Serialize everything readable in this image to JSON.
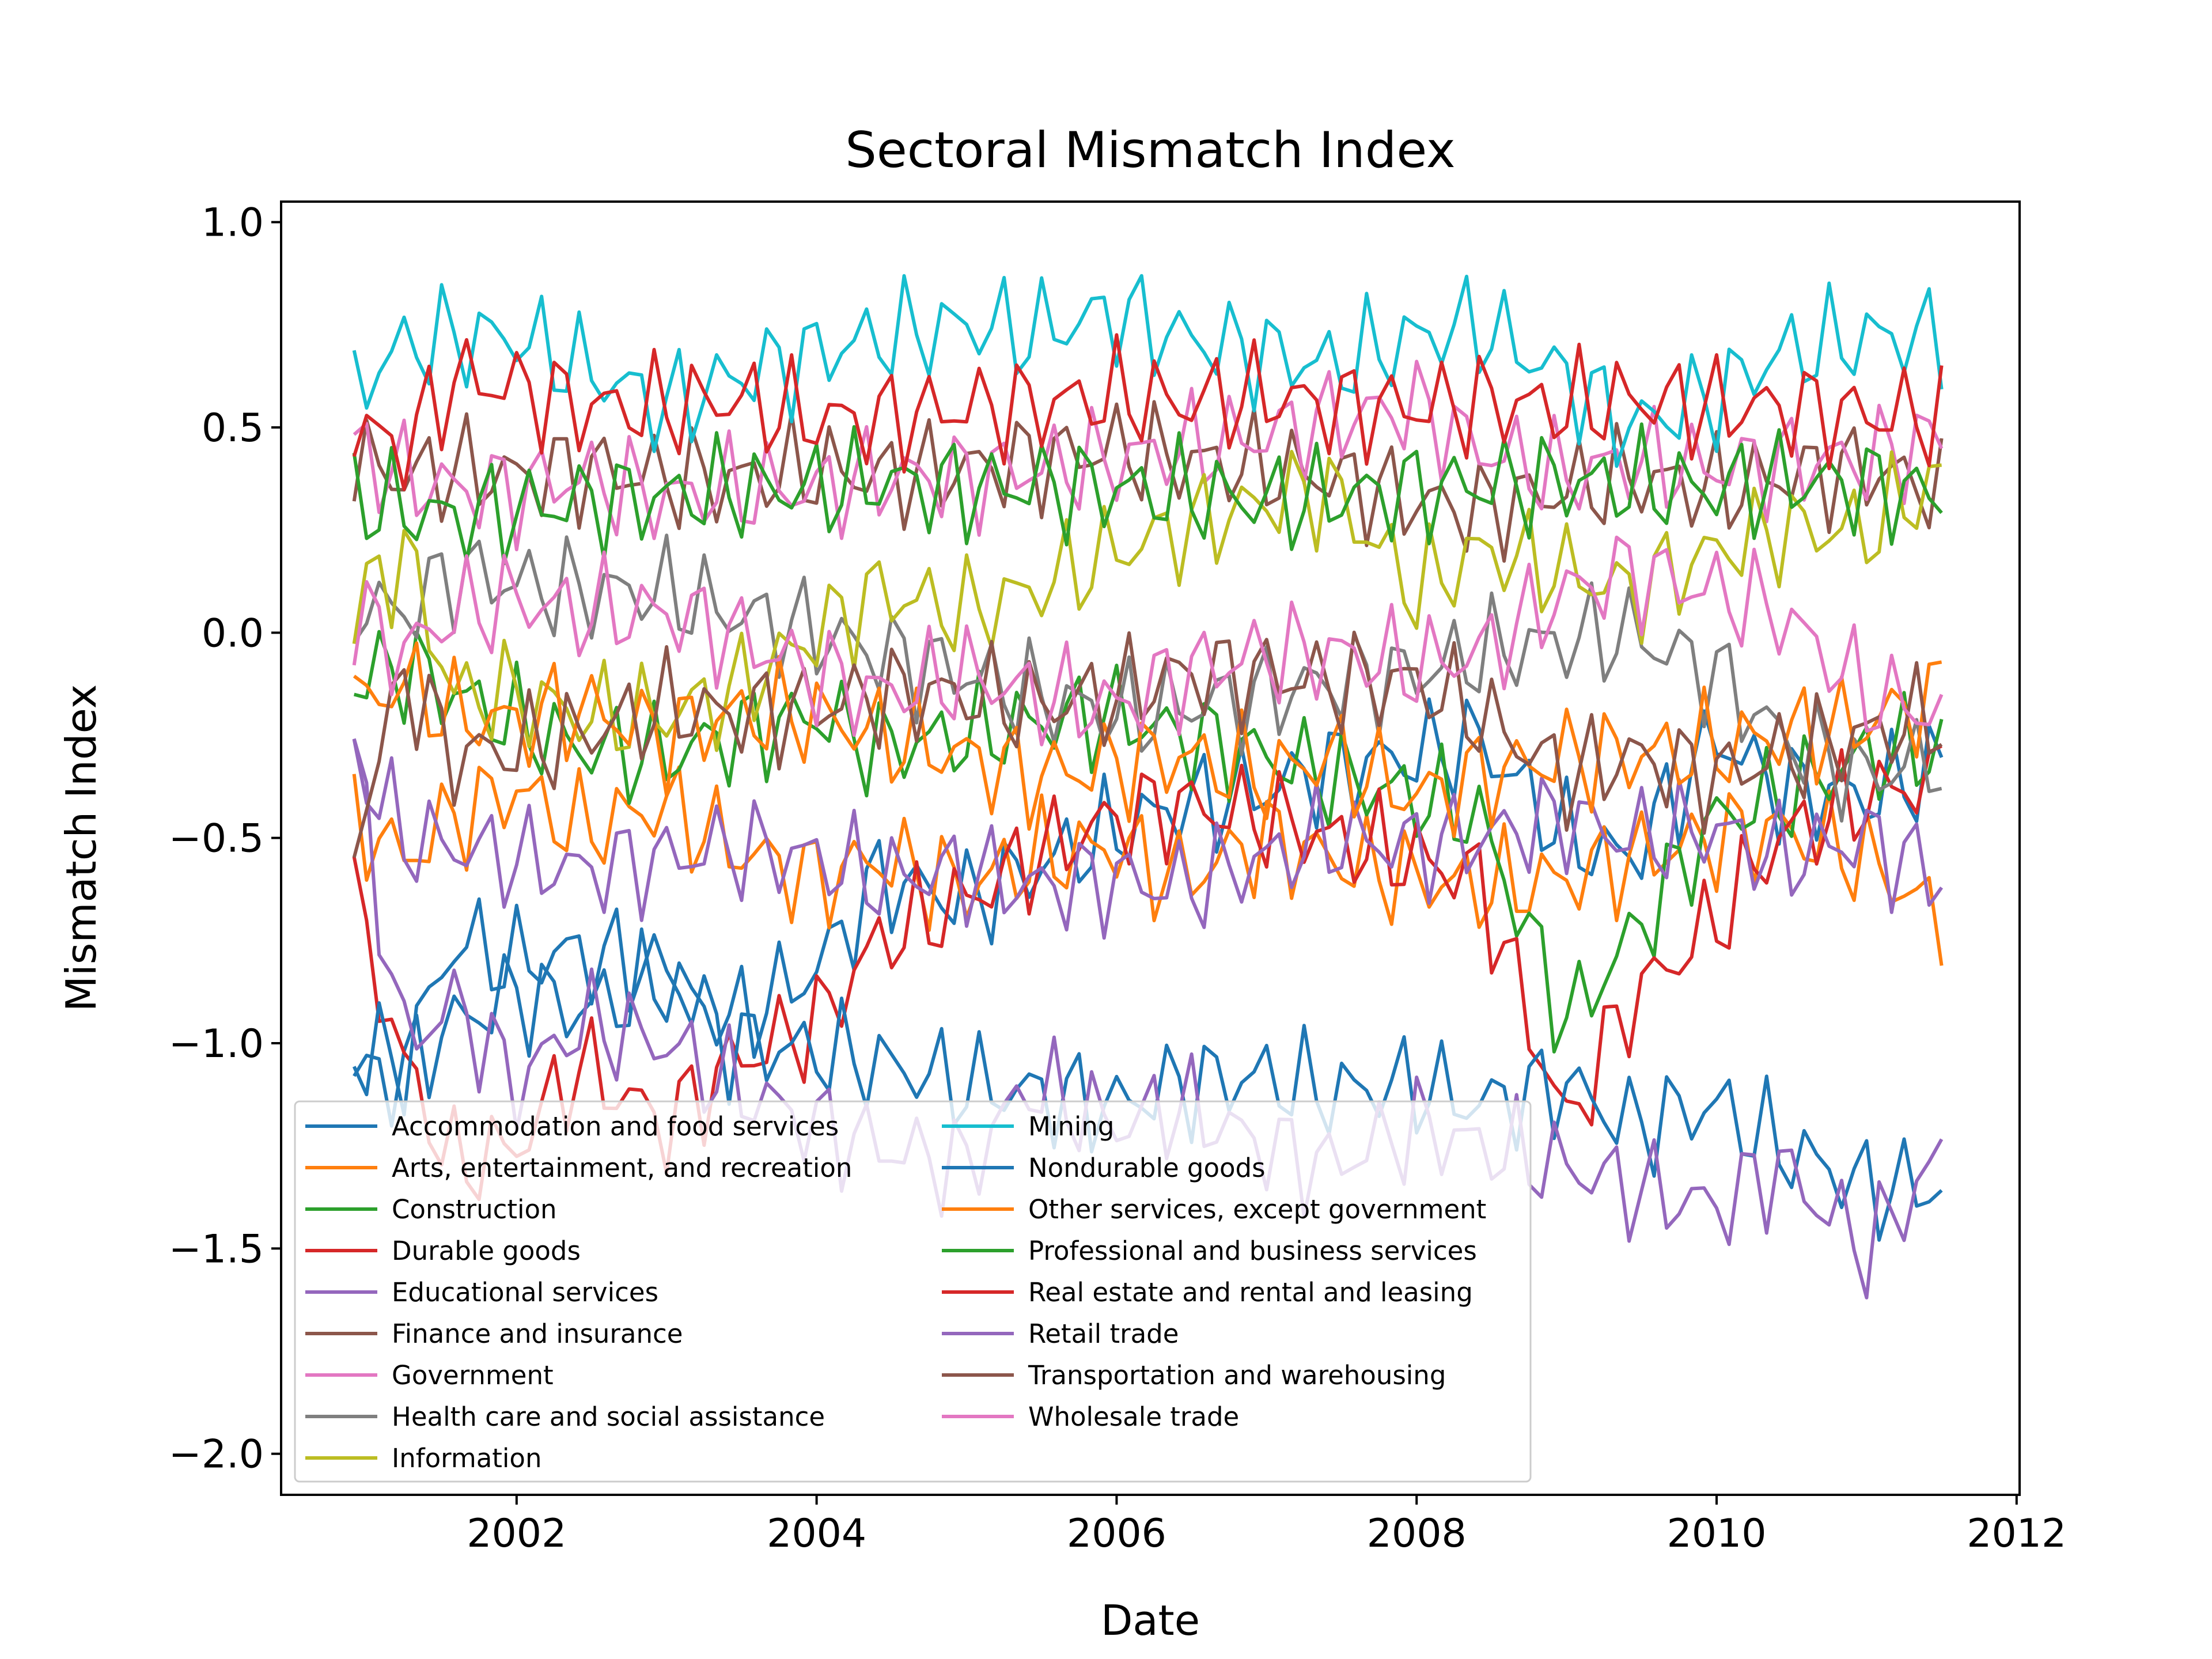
{
  "chart_data": {
    "type": "line",
    "title": "Sectoral Mismatch Index",
    "xlabel": "Date",
    "ylabel": "Mismatch Index",
    "x_start": "2000-12",
    "x_end": "2011-07",
    "xlim": [
      2000.43,
      2012.02
    ],
    "ylim": [
      -2.1,
      1.05
    ],
    "xticks": [
      2002,
      2004,
      2006,
      2008,
      2010,
      2012
    ],
    "xtick_labels": [
      "2002",
      "2004",
      "2006",
      "2008",
      "2010",
      "2012"
    ],
    "yticks": [
      1.0,
      0.5,
      0.0,
      -0.5,
      -1.0,
      -1.5,
      -2.0
    ],
    "ytick_labels": [
      "1.0",
      "0.5",
      "0.0",
      "−0.5",
      "−1.0",
      "−1.5",
      "−2.0"
    ],
    "grid": false,
    "legend_position": "lower-left",
    "series": [
      {
        "name": "Accommodation and food services",
        "color": "#1f77b4",
        "x": [
          "2000-12",
          "2001-04",
          "2001-08",
          "2002-01",
          "2002-06",
          "2003-01",
          "2003-06",
          "2004-01",
          "2004-06",
          "2005-01",
          "2005-06",
          "2006-01",
          "2006-06",
          "2007-01",
          "2007-06",
          "2008-01",
          "2008-06",
          "2009-01",
          "2009-06",
          "2010-01",
          "2010-06",
          "2011-01",
          "2011-07"
        ],
        "values": [
          -1.08,
          -1.07,
          -0.95,
          -0.88,
          -0.92,
          -0.85,
          -0.95,
          -0.82,
          -0.6,
          -0.65,
          -0.58,
          -0.48,
          -0.42,
          -0.38,
          -0.33,
          -0.3,
          -0.26,
          -0.5,
          -0.55,
          -0.25,
          -0.38,
          -0.4,
          -0.32
        ]
      },
      {
        "name": "Arts, entertainment, and recreation",
        "color": "#ff7f0e",
        "x": [
          "2000-12",
          "2001-04",
          "2001-08",
          "2002-01",
          "2002-06",
          "2003-01",
          "2003-06",
          "2004-01",
          "2004-06",
          "2005-01",
          "2005-06",
          "2006-01",
          "2006-06",
          "2007-01",
          "2007-06",
          "2008-01",
          "2008-06",
          "2009-01",
          "2009-06",
          "2010-01",
          "2010-06",
          "2011-01",
          "2011-07"
        ],
        "values": [
          -0.45,
          -0.55,
          -0.45,
          -0.38,
          -0.48,
          -0.42,
          -0.52,
          -0.6,
          -0.55,
          -0.62,
          -0.55,
          -0.52,
          -0.6,
          -0.5,
          -0.55,
          -0.6,
          -0.62,
          -0.6,
          -0.55,
          -0.5,
          -0.48,
          -0.55,
          -0.7
        ]
      },
      {
        "name": "Construction",
        "color": "#2ca02c",
        "x": [
          "2000-12",
          "2001-04",
          "2001-08",
          "2002-01",
          "2002-06",
          "2003-01",
          "2003-06",
          "2004-01",
          "2004-06",
          "2005-01",
          "2005-06",
          "2006-01",
          "2006-06",
          "2007-01",
          "2007-06",
          "2008-01",
          "2008-06",
          "2009-01",
          "2009-06",
          "2010-01",
          "2010-06",
          "2011-01",
          "2011-07"
        ],
        "values": [
          -0.12,
          -0.08,
          -0.15,
          -0.22,
          -0.28,
          -0.3,
          -0.25,
          -0.2,
          -0.28,
          -0.25,
          -0.22,
          -0.2,
          -0.25,
          -0.3,
          -0.35,
          -0.4,
          -0.45,
          -0.95,
          -0.75,
          -0.45,
          -0.4,
          -0.3,
          -0.28
        ]
      },
      {
        "name": "Durable goods",
        "color": "#d62728",
        "x": [
          "2000-12",
          "2001-04",
          "2001-08",
          "2002-01",
          "2002-06",
          "2003-01",
          "2003-06",
          "2004-01",
          "2004-06",
          "2005-01",
          "2005-06",
          "2006-01",
          "2006-06",
          "2007-01",
          "2007-06",
          "2008-01",
          "2008-06",
          "2009-01",
          "2009-06",
          "2010-01",
          "2010-06",
          "2011-01",
          "2011-07"
        ],
        "values": [
          -0.65,
          -1.05,
          -1.3,
          -1.25,
          -1.05,
          -1.2,
          -1.05,
          -0.95,
          -0.75,
          -0.65,
          -0.55,
          -0.45,
          -0.42,
          -0.45,
          -0.5,
          -0.55,
          -0.6,
          -1.2,
          -0.9,
          -0.7,
          -0.5,
          -0.4,
          -0.35
        ]
      },
      {
        "name": "Educational services",
        "color": "#9467bd",
        "x": [
          "2000-12",
          "2001-04",
          "2001-08",
          "2002-01",
          "2002-06",
          "2003-01",
          "2003-06",
          "2004-01",
          "2004-06",
          "2005-01",
          "2005-06",
          "2006-01",
          "2006-06",
          "2007-01",
          "2007-06",
          "2008-01",
          "2008-06",
          "2009-01",
          "2009-06",
          "2010-01",
          "2010-06",
          "2011-01",
          "2011-07"
        ],
        "values": [
          -0.3,
          -0.5,
          -0.52,
          -0.55,
          -0.58,
          -0.55,
          -0.52,
          -0.55,
          -0.6,
          -0.58,
          -0.62,
          -0.6,
          -0.62,
          -0.55,
          -0.5,
          -0.52,
          -0.5,
          -0.45,
          -0.5,
          -0.48,
          -0.55,
          -0.5,
          -0.6
        ]
      },
      {
        "name": "Finance and insurance",
        "color": "#8c564b",
        "x": [
          "2000-12",
          "2001-04",
          "2001-08",
          "2002-01",
          "2002-06",
          "2003-01",
          "2003-06",
          "2004-01",
          "2004-06",
          "2005-01",
          "2005-06",
          "2006-01",
          "2006-06",
          "2007-01",
          "2007-06",
          "2008-01",
          "2008-06",
          "2009-01",
          "2009-06",
          "2010-01",
          "2010-06",
          "2011-01",
          "2011-07"
        ],
        "values": [
          0.42,
          0.38,
          0.4,
          0.38,
          0.4,
          0.38,
          0.37,
          0.4,
          0.38,
          0.4,
          0.42,
          0.45,
          0.42,
          0.4,
          0.38,
          0.32,
          0.3,
          0.35,
          0.38,
          0.35,
          0.38,
          0.4,
          0.35
        ]
      },
      {
        "name": "Government",
        "color": "#e377c2",
        "x": [
          "2000-12",
          "2001-04",
          "2001-08",
          "2002-01",
          "2002-06",
          "2003-01",
          "2003-06",
          "2004-01",
          "2004-06",
          "2005-01",
          "2005-06",
          "2006-01",
          "2006-06",
          "2007-01",
          "2007-06",
          "2008-01",
          "2008-06",
          "2009-01",
          "2009-06",
          "2010-01",
          "2010-06",
          "2011-01",
          "2011-07"
        ],
        "values": [
          0.45,
          0.38,
          0.35,
          0.35,
          0.38,
          0.33,
          0.35,
          0.35,
          0.38,
          0.38,
          0.4,
          0.42,
          0.45,
          0.48,
          0.52,
          0.55,
          0.45,
          0.38,
          0.42,
          0.4,
          0.42,
          0.42,
          0.48
        ]
      },
      {
        "name": "Health care and social assistance",
        "color": "#7f7f7f",
        "x": [
          "2000-12",
          "2001-04",
          "2001-08",
          "2002-01",
          "2002-06",
          "2003-01",
          "2003-06",
          "2004-01",
          "2004-06",
          "2005-01",
          "2005-06",
          "2006-01",
          "2006-06",
          "2007-01",
          "2007-06",
          "2008-01",
          "2008-06",
          "2009-01",
          "2009-06",
          "2010-01",
          "2010-06",
          "2011-01",
          "2011-07"
        ],
        "values": [
          0.07,
          0.05,
          0.15,
          0.12,
          0.1,
          0.1,
          0.05,
          0.0,
          -0.05,
          -0.1,
          -0.15,
          -0.2,
          -0.18,
          -0.15,
          -0.12,
          -0.1,
          -0.05,
          -0.02,
          0.0,
          -0.1,
          -0.25,
          -0.35,
          -0.3
        ]
      },
      {
        "name": "Information",
        "color": "#bcbd22",
        "x": [
          "2000-12",
          "2001-04",
          "2001-08",
          "2002-01",
          "2002-06",
          "2003-01",
          "2003-06",
          "2004-01",
          "2004-06",
          "2005-01",
          "2005-06",
          "2006-01",
          "2006-06",
          "2007-01",
          "2007-06",
          "2008-01",
          "2008-06",
          "2009-01",
          "2009-06",
          "2010-01",
          "2010-06",
          "2011-01",
          "2011-07"
        ],
        "values": [
          0.05,
          0.2,
          -0.15,
          -0.15,
          -0.2,
          -0.2,
          -0.15,
          0.0,
          0.1,
          0.05,
          0.1,
          0.2,
          0.25,
          0.32,
          0.35,
          0.1,
          0.2,
          0.15,
          0.1,
          0.2,
          0.25,
          0.25,
          0.38
        ]
      },
      {
        "name": "Mining",
        "color": "#17becf",
        "x": [
          "2000-12",
          "2001-04",
          "2001-08",
          "2002-01",
          "2002-06",
          "2003-01",
          "2003-06",
          "2004-01",
          "2004-06",
          "2005-01",
          "2005-06",
          "2006-01",
          "2006-06",
          "2007-01",
          "2007-06",
          "2008-01",
          "2008-06",
          "2009-01",
          "2009-06",
          "2010-01",
          "2010-06",
          "2011-01",
          "2011-07"
        ],
        "values": [
          0.6,
          0.7,
          0.72,
          0.72,
          0.65,
          0.55,
          0.62,
          0.68,
          0.72,
          0.75,
          0.73,
          0.78,
          0.72,
          0.68,
          0.65,
          0.72,
          0.75,
          0.62,
          0.5,
          0.58,
          0.68,
          0.72,
          0.72
        ]
      },
      {
        "name": "Nondurable goods",
        "color": "#1f77b4",
        "x": [
          "2000-12",
          "2001-04",
          "2001-08",
          "2002-01",
          "2002-06",
          "2003-01",
          "2003-06",
          "2004-01",
          "2004-06",
          "2005-01",
          "2005-06",
          "2006-01",
          "2006-06",
          "2007-01",
          "2007-06",
          "2008-01",
          "2008-06",
          "2009-01",
          "2009-06",
          "2010-01",
          "2010-06",
          "2011-01",
          "2011-07"
        ],
        "values": [
          -1.02,
          -1.05,
          -0.75,
          -0.8,
          -0.78,
          -0.82,
          -1.0,
          -1.02,
          -1.05,
          -1.1,
          -1.12,
          -1.15,
          -1.1,
          -1.08,
          -1.12,
          -1.1,
          -1.15,
          -1.1,
          -1.2,
          -1.15,
          -1.25,
          -1.35,
          -1.35
        ]
      },
      {
        "name": "Other services, except government",
        "color": "#ff7f0e",
        "x": [
          "2000-12",
          "2001-04",
          "2001-08",
          "2002-01",
          "2002-06",
          "2003-01",
          "2003-06",
          "2004-01",
          "2004-06",
          "2005-01",
          "2005-06",
          "2006-01",
          "2006-06",
          "2007-01",
          "2007-06",
          "2008-01",
          "2008-06",
          "2009-01",
          "2009-06",
          "2010-01",
          "2010-06",
          "2011-01",
          "2011-07"
        ],
        "values": [
          -0.18,
          -0.12,
          -0.2,
          -0.22,
          -0.18,
          -0.25,
          -0.2,
          -0.2,
          -0.25,
          -0.3,
          -0.35,
          -0.32,
          -0.3,
          -0.35,
          -0.3,
          -0.4,
          -0.35,
          -0.3,
          -0.3,
          -0.28,
          -0.25,
          -0.22,
          -0.15
        ]
      },
      {
        "name": "Professional and business services",
        "color": "#2ca02c",
        "x": [
          "2000-12",
          "2001-04",
          "2001-08",
          "2002-01",
          "2002-06",
          "2003-01",
          "2003-06",
          "2004-01",
          "2004-06",
          "2005-01",
          "2005-06",
          "2006-01",
          "2006-06",
          "2007-01",
          "2007-06",
          "2008-01",
          "2008-06",
          "2009-01",
          "2009-06",
          "2010-01",
          "2010-06",
          "2011-01",
          "2011-07"
        ],
        "values": [
          0.33,
          0.3,
          0.28,
          0.3,
          0.32,
          0.33,
          0.35,
          0.35,
          0.37,
          0.35,
          0.36,
          0.35,
          0.34,
          0.32,
          0.33,
          0.35,
          0.36,
          0.37,
          0.36,
          0.35,
          0.37,
          0.36,
          0.33
        ]
      },
      {
        "name": "Real estate and rental and leasing",
        "color": "#d62728",
        "x": [
          "2000-12",
          "2001-04",
          "2001-08",
          "2002-01",
          "2002-06",
          "2003-01",
          "2003-06",
          "2004-01",
          "2004-06",
          "2005-01",
          "2005-06",
          "2006-01",
          "2006-06",
          "2007-01",
          "2007-06",
          "2008-01",
          "2008-06",
          "2009-01",
          "2009-06",
          "2010-01",
          "2010-06",
          "2011-01",
          "2011-07"
        ],
        "values": [
          0.5,
          0.45,
          0.62,
          0.6,
          0.55,
          0.55,
          0.57,
          0.52,
          0.52,
          0.55,
          0.55,
          0.58,
          0.56,
          0.58,
          0.55,
          0.55,
          0.56,
          0.55,
          0.57,
          0.55,
          0.55,
          0.53,
          0.53
        ]
      },
      {
        "name": "Retail trade",
        "color": "#9467bd",
        "x": [
          "2000-12",
          "2001-04",
          "2001-08",
          "2002-01",
          "2002-06",
          "2003-01",
          "2003-06",
          "2004-01",
          "2004-06",
          "2005-01",
          "2005-06",
          "2006-01",
          "2006-06",
          "2007-01",
          "2007-06",
          "2008-01",
          "2008-06",
          "2009-01",
          "2009-06",
          "2010-01",
          "2010-06",
          "2011-01",
          "2011-07"
        ],
        "values": [
          -0.3,
          -1.0,
          -0.9,
          -1.1,
          -0.95,
          -1.0,
          -1.1,
          -1.2,
          -1.25,
          -1.3,
          -1.1,
          -1.2,
          -1.15,
          -1.25,
          -1.3,
          -1.2,
          -1.25,
          -1.3,
          -1.35,
          -1.4,
          -1.3,
          -1.5,
          -1.28
        ]
      },
      {
        "name": "Transportation and warehousing",
        "color": "#8c564b",
        "x": [
          "2000-12",
          "2001-04",
          "2001-08",
          "2002-01",
          "2002-06",
          "2003-01",
          "2003-06",
          "2004-01",
          "2004-06",
          "2005-01",
          "2005-06",
          "2006-01",
          "2006-06",
          "2007-01",
          "2007-06",
          "2008-01",
          "2008-06",
          "2009-01",
          "2009-06",
          "2010-01",
          "2010-06",
          "2011-01",
          "2011-07"
        ],
        "values": [
          -0.5,
          -0.1,
          -0.3,
          -0.28,
          -0.25,
          -0.18,
          -0.2,
          -0.18,
          -0.15,
          -0.15,
          -0.18,
          -0.15,
          -0.1,
          -0.1,
          -0.12,
          -0.12,
          -0.2,
          -0.35,
          -0.3,
          -0.35,
          -0.3,
          -0.25,
          -0.2
        ]
      },
      {
        "name": "Wholesale trade",
        "color": "#e377c2",
        "x": [
          "2000-12",
          "2001-04",
          "2001-08",
          "2002-01",
          "2002-06",
          "2003-01",
          "2003-06",
          "2004-01",
          "2004-06",
          "2005-01",
          "2005-06",
          "2006-01",
          "2006-06",
          "2007-01",
          "2007-06",
          "2008-01",
          "2008-06",
          "2009-01",
          "2009-06",
          "2010-01",
          "2010-06",
          "2011-01",
          "2011-07"
        ],
        "values": [
          0.05,
          -0.05,
          0.05,
          0.08,
          0.05,
          0.05,
          0.0,
          -0.1,
          -0.15,
          -0.1,
          -0.15,
          -0.18,
          -0.1,
          -0.05,
          -0.05,
          -0.08,
          -0.05,
          0.1,
          0.15,
          0.1,
          0.05,
          -0.15,
          -0.2
        ]
      }
    ]
  }
}
